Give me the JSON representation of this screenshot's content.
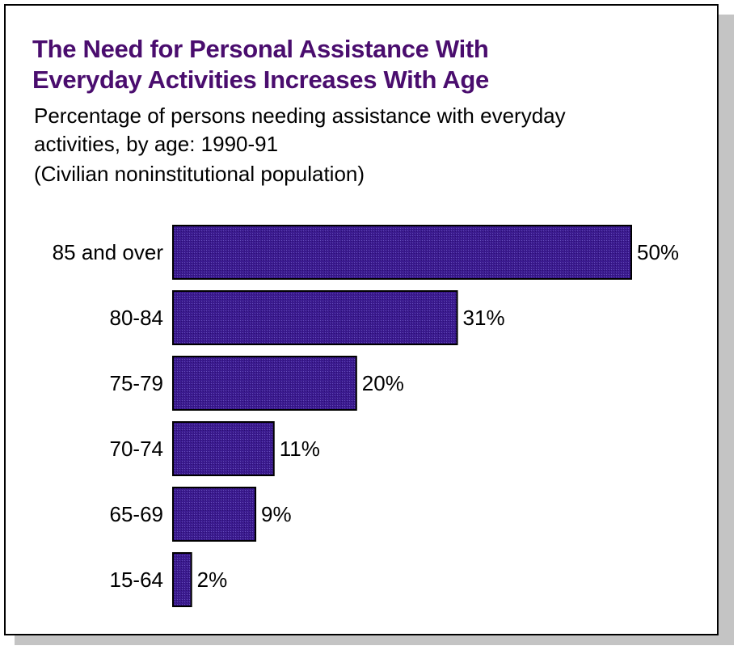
{
  "chart_data": {
    "type": "bar",
    "orientation": "horizontal",
    "title": [
      "The Need for Personal Assistance With",
      "Everyday Activities Increases With Age"
    ],
    "subtitle": [
      "Percentage of persons needing assistance with everyday",
      "activities, by age:  1990-91"
    ],
    "note": "(Civilian noninstitutional population)",
    "categories": [
      "85 and over",
      "80-84",
      "75-79",
      "70-74",
      "65-69",
      "15-64"
    ],
    "values": [
      50,
      31,
      20,
      11,
      9,
      2
    ],
    "value_labels": [
      "50%",
      "31%",
      "20%",
      "11%",
      "9%",
      "2%"
    ],
    "xlim": [
      0,
      50
    ],
    "grid": false,
    "legend": "none",
    "colors": {
      "bar": "#3b1a8f",
      "title": "#4a0d6e"
    }
  }
}
